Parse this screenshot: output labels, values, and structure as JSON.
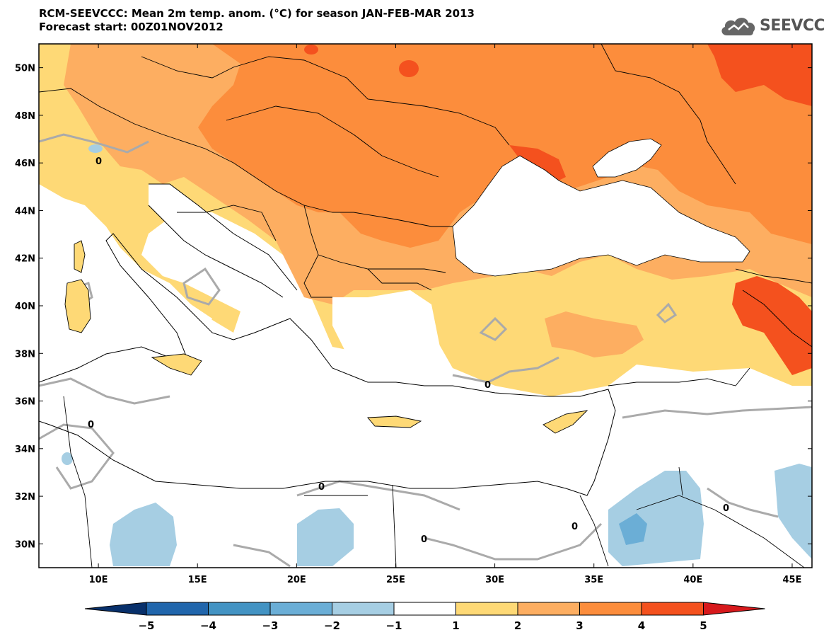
{
  "header": {
    "title_line1": "RCM-SEEVCCC: Mean 2m temp. anom. (°C) for season JAN-FEB-MAR 2013",
    "title_line2": "Forecast start: 00Z01NOV2012",
    "logo_text": "SEEVCCC"
  },
  "map": {
    "variable": "Mean 2m temperature anomaly",
    "unit": "°C",
    "lon_range": [
      7,
      46
    ],
    "lat_range": [
      29,
      51
    ],
    "lat_ticks": [
      {
        "value": 50,
        "label": "50N"
      },
      {
        "value": 48,
        "label": "48N"
      },
      {
        "value": 46,
        "label": "46N"
      },
      {
        "value": 44,
        "label": "44N"
      },
      {
        "value": 42,
        "label": "42N"
      },
      {
        "value": 40,
        "label": "40N"
      },
      {
        "value": 38,
        "label": "38N"
      },
      {
        "value": 36,
        "label": "36N"
      },
      {
        "value": 34,
        "label": "34N"
      },
      {
        "value": 32,
        "label": "32N"
      },
      {
        "value": 30,
        "label": "30N"
      }
    ],
    "lon_ticks": [
      {
        "value": 10,
        "label": "10E"
      },
      {
        "value": 15,
        "label": "15E"
      },
      {
        "value": 20,
        "label": "20E"
      },
      {
        "value": 25,
        "label": "25E"
      },
      {
        "value": 30,
        "label": "30E"
      },
      {
        "value": 35,
        "label": "35E"
      },
      {
        "value": 40,
        "label": "40E"
      },
      {
        "value": 45,
        "label": "45E"
      }
    ],
    "contour_label": "0"
  },
  "colorbar": {
    "levels": [
      "-5",
      "-4",
      "-3",
      "-2",
      "-1",
      "1",
      "2",
      "3",
      "4",
      "5"
    ],
    "colors": [
      "#08306b",
      "#2166ac",
      "#4393c3",
      "#6baed6",
      "#a6cee3",
      "#ffffff",
      "#fed976",
      "#fdae61",
      "#fc8d3c",
      "#f4511e",
      "#d7191c"
    ]
  }
}
